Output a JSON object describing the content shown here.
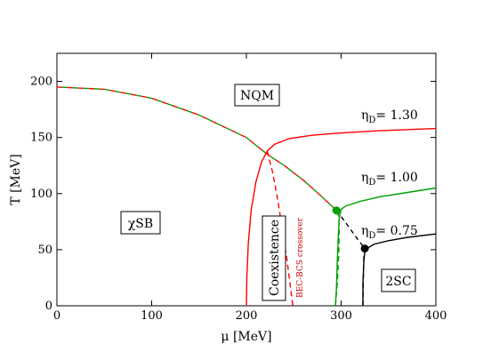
{
  "chart_data": {
    "type": "line",
    "xlabel": "μ [MeV]",
    "ylabel": "T [MeV]",
    "xlim": [
      0,
      400
    ],
    "ylim": [
      0,
      225
    ],
    "x_ticks": [
      0,
      100,
      200,
      300,
      400
    ],
    "y_ticks": [
      0,
      50,
      100,
      150,
      200
    ],
    "grid": false,
    "series": [
      {
        "name": "ηD= 1.30",
        "color": "#ff0000",
        "points": [
          [
            200,
            0
          ],
          [
            200.5,
            25
          ],
          [
            202,
            55
          ],
          [
            205,
            85
          ],
          [
            210,
            110
          ],
          [
            216,
            128
          ],
          [
            222,
            138
          ],
          [
            230,
            144
          ],
          [
            245,
            149
          ],
          [
            270,
            152
          ],
          [
            300,
            154
          ],
          [
            340,
            156
          ],
          [
            400,
            158
          ]
        ],
        "dashed_points": [
          [
            222,
            138
          ],
          [
            228,
            118
          ],
          [
            233,
            95
          ],
          [
            238,
            68
          ],
          [
            243,
            40
          ],
          [
            246,
            20
          ],
          [
            249,
            0
          ]
        ]
      },
      {
        "name": "ηD= 1.00",
        "color": "#00a000",
        "points": [
          [
            294,
            0
          ],
          [
            295,
            15
          ],
          [
            296,
            40
          ],
          [
            297,
            62
          ],
          [
            298,
            78
          ],
          [
            300,
            86
          ],
          [
            305,
            89
          ],
          [
            320,
            93
          ],
          [
            340,
            97
          ],
          [
            370,
            101
          ],
          [
            400,
            105
          ]
        ],
        "dashed_points": [
          [
            294,
            0
          ],
          [
            296,
            20
          ],
          [
            297.5,
            45
          ],
          [
            298,
            65
          ],
          [
            297.5,
            80
          ],
          [
            295,
            84
          ]
        ]
      },
      {
        "name": "ηD= 0.75",
        "color": "#000000",
        "points": [
          [
            323,
            0
          ],
          [
            323,
            20
          ],
          [
            324,
            40
          ],
          [
            325,
            48
          ],
          [
            327,
            51
          ],
          [
            335,
            55
          ],
          [
            350,
            58
          ],
          [
            370,
            61
          ],
          [
            400,
            64
          ]
        ],
        "dashed_points": [
          [
            323,
            0
          ],
          [
            323.5,
            25
          ],
          [
            324,
            45
          ],
          [
            325,
            51
          ]
        ]
      }
    ],
    "common_boundary": {
      "dash_colors": [
        "#ff0000",
        "#00a000"
      ],
      "points": [
        [
          0,
          195
        ],
        [
          50,
          193
        ],
        [
          100,
          185
        ],
        [
          150,
          170
        ],
        [
          200,
          150
        ],
        [
          222,
          135
        ],
        [
          240,
          125
        ],
        [
          260,
          112
        ],
        [
          280,
          97
        ],
        [
          295,
          85
        ]
      ]
    },
    "black_dashed_boundary": {
      "points": [
        [
          295,
          85
        ],
        [
          305,
          74
        ],
        [
          315,
          62
        ],
        [
          325,
          51
        ]
      ]
    },
    "critical_points": [
      {
        "x": 295,
        "y": 85,
        "color": "#00a000"
      },
      {
        "x": 325,
        "y": 51,
        "color": "#000000"
      }
    ],
    "region_labels": {
      "nqm": "NQM",
      "chisb": "χSB",
      "coexistence": "Coexistence",
      "twosc": "2SC",
      "crossover": "BEC-BCS crossover"
    }
  }
}
